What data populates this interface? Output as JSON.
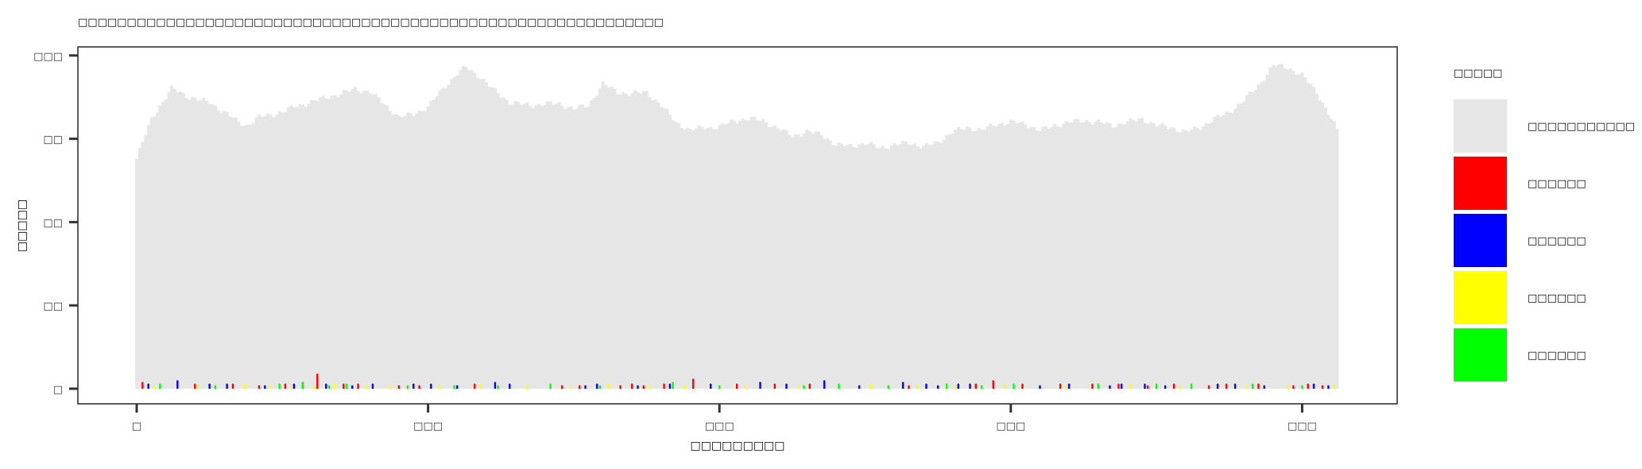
{
  "chart_data": {
    "type": "bar",
    "title": "□□□□□□□□□□□□□□□□□□□□□□□□□□□□□□□□□□□□□□□□□□□□□□□□□□□□□□□□□□□□",
    "xlabel": "□□□□□□□□□",
    "ylabel": "□□□□□",
    "xlim": [
      0,
      412
    ],
    "ylim": [
      0,
      200
    ],
    "x_ticks": [
      0,
      100,
      200,
      300,
      400
    ],
    "x_tick_labels": [
      "□",
      "□□□",
      "□□□",
      "□□□",
      "□□□"
    ],
    "y_ticks": [
      0,
      50,
      100,
      150,
      200
    ],
    "y_tick_labels": [
      "□",
      "□□",
      "□□",
      "□□",
      "□□□"
    ],
    "grid": false,
    "legend_position": "right",
    "legend_title": "□□□□□",
    "legend_entries": [
      {
        "label": "□□□□□□□□□□□",
        "color": "#e6e6e6"
      },
      {
        "label": "□□□□□□",
        "color": "#ff0000"
      },
      {
        "label": "□□□□□□",
        "color": "#0000ff"
      },
      {
        "label": "□□□□□□",
        "color": "#ffff00"
      },
      {
        "label": "□□□□□□",
        "color": "#00ff00"
      }
    ],
    "coverage": {
      "color": "#e6e6e6",
      "x_range": [
        0,
        412
      ],
      "profile_x": [
        0,
        5,
        10,
        12,
        15,
        18,
        22,
        25,
        30,
        35,
        38,
        42,
        50,
        55,
        60,
        65,
        70,
        75,
        80,
        85,
        90,
        95,
        100,
        105,
        110,
        113,
        118,
        122,
        128,
        135,
        140,
        145,
        150,
        155,
        160,
        165,
        170,
        175,
        180,
        185,
        190,
        195,
        200,
        205,
        210,
        215,
        220,
        225,
        230,
        235,
        240,
        245,
        250,
        255,
        260,
        265,
        270,
        275,
        280,
        285,
        290,
        295,
        300,
        305,
        310,
        315,
        320,
        325,
        330,
        335,
        340,
        345,
        350,
        355,
        360,
        365,
        370,
        375,
        380,
        385,
        390,
        395,
        400,
        405,
        410,
        412
      ],
      "profile_y": [
        138,
        162,
        175,
        180,
        178,
        175,
        173,
        172,
        166,
        160,
        158,
        163,
        166,
        170,
        172,
        175,
        177,
        180,
        178,
        171,
        163,
        165,
        169,
        180,
        189,
        193,
        187,
        180,
        172,
        170,
        171,
        171,
        168,
        170,
        183,
        178,
        177,
        178,
        170,
        160,
        155,
        157,
        157,
        161,
        162,
        161,
        156,
        152,
        154,
        153,
        146,
        146,
        147,
        145,
        146,
        148,
        145,
        148,
        154,
        157,
        155,
        159,
        160,
        159,
        155,
        158,
        160,
        161,
        160,
        158,
        160,
        162,
        158,
        157,
        154,
        157,
        162,
        166,
        173,
        182,
        194,
        193,
        188,
        178,
        162,
        155
      ]
    },
    "variants": [
      {
        "name": "red",
        "color": "#ff0000",
        "x": [
          2,
          20,
          33,
          42,
          51,
          57,
          62,
          71,
          76,
          90,
          97,
          116,
          146,
          152,
          166,
          170,
          174,
          181,
          191,
          206,
          219,
          231,
          236,
          265,
          288,
          294,
          304,
          317,
          328,
          337,
          347,
          356,
          368,
          374,
          385,
          397,
          402,
          407
        ],
        "y": [
          4,
          3,
          3,
          2,
          3,
          4,
          9,
          3,
          3,
          2,
          2,
          3,
          2,
          2,
          2,
          3,
          2,
          3,
          6,
          3,
          3,
          3,
          3,
          2,
          3,
          5,
          3,
          3,
          3,
          3,
          2,
          3,
          2,
          3,
          3,
          2,
          3,
          2
        ]
      },
      {
        "name": "blue",
        "color": "#0000ff",
        "x": [
          4,
          14,
          25,
          31,
          44,
          54,
          65,
          74,
          81,
          95,
          101,
          110,
          123,
          128,
          154,
          158,
          172,
          183,
          197,
          214,
          223,
          236,
          248,
          263,
          271,
          275,
          282,
          286,
          310,
          320,
          334,
          338,
          346,
          353,
          371,
          377,
          387,
          404,
          409
        ],
        "y": [
          3,
          5,
          3,
          3,
          2,
          3,
          3,
          2,
          3,
          3,
          3,
          2,
          4,
          3,
          2,
          3,
          2,
          3,
          3,
          4,
          3,
          5,
          2,
          4,
          3,
          2,
          3,
          3,
          2,
          3,
          2,
          3,
          3,
          2,
          3,
          3,
          2,
          3,
          2
        ]
      },
      {
        "name": "yellow",
        "color": "#ffff00",
        "x": [
          6,
          21,
          37,
          46,
          53,
          61,
          68,
          79,
          87,
          104,
          118,
          134,
          149,
          162,
          176,
          188,
          209,
          227,
          252,
          268,
          281,
          298,
          319,
          341,
          358,
          381,
          395,
          411
        ],
        "y": [
          2,
          2,
          3,
          2,
          2,
          2,
          3,
          2,
          2,
          2,
          3,
          2,
          2,
          3,
          2,
          2,
          2,
          2,
          3,
          2,
          2,
          3,
          2,
          3,
          2,
          2,
          2,
          3
        ]
      },
      {
        "name": "green",
        "color": "#00ff00",
        "x": [
          8,
          27,
          49,
          57,
          66,
          72,
          93,
          109,
          124,
          142,
          159,
          184,
          200,
          229,
          241,
          258,
          278,
          290,
          301,
          330,
          350,
          362,
          383,
          400
        ],
        "y": [
          3,
          2,
          3,
          4,
          2,
          3,
          2,
          2,
          2,
          3,
          2,
          4,
          2,
          2,
          3,
          2,
          3,
          2,
          3,
          3,
          3,
          3,
          3,
          2
        ]
      }
    ]
  }
}
